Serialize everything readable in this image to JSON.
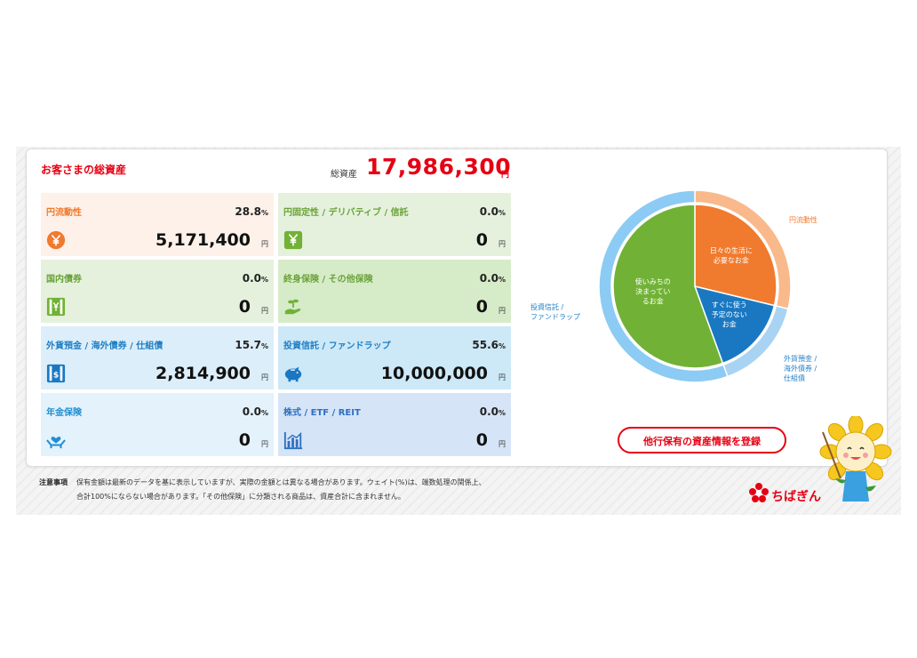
{
  "summary": {
    "title": "お客さまの総資産",
    "total_label": "総資産",
    "total_value": "17,986,300",
    "total_unit": "円"
  },
  "tiles": [
    {
      "name": "円流動性",
      "pct": "28.8",
      "pct_unit": "%",
      "value": "5,171,400",
      "unit": "円",
      "icon": "yen-coin-icon"
    },
    {
      "name": "円固定性 / デリバティブ / 信託",
      "pct": "0.0",
      "pct_unit": "%",
      "value": "0",
      "unit": "円",
      "icon": "yen-square-icon"
    },
    {
      "name": "国内債券",
      "pct": "0.0",
      "pct_unit": "%",
      "value": "0",
      "unit": "円",
      "icon": "yen-bond-icon"
    },
    {
      "name": "終身保険 / その他保険",
      "pct": "0.0",
      "pct_unit": "%",
      "value": "0",
      "unit": "円",
      "icon": "hand-plant-icon"
    },
    {
      "name": "外貨預金 / 海外債券 / 仕組債",
      "pct": "15.7",
      "pct_unit": "%",
      "value": "2,814,900",
      "unit": "円",
      "icon": "dollar-bond-icon"
    },
    {
      "name": "投資信託 / ファンドラップ",
      "pct": "55.6",
      "pct_unit": "%",
      "value": "10,000,000",
      "unit": "円",
      "icon": "piggy-bank-icon"
    },
    {
      "name": "年金保険",
      "pct": "0.0",
      "pct_unit": "%",
      "value": "0",
      "unit": "円",
      "icon": "hands-heart-icon"
    },
    {
      "name": "株式 / ETF / REIT",
      "pct": "0.0",
      "pct_unit": "%",
      "value": "0",
      "unit": "円",
      "icon": "bar-chart-icon"
    }
  ],
  "chart_data": {
    "type": "pie",
    "inner": [
      {
        "label": "日々の生活に必要なお金",
        "value": 28.8,
        "color": "#f07a2d"
      },
      {
        "label": "すぐに使う予定のないお金",
        "value": 15.7,
        "color": "#1a78c2"
      },
      {
        "label": "使いみちの決まっているお金",
        "value": 55.6,
        "color": "#71b236"
      }
    ],
    "outer": [
      {
        "label": "円流動性",
        "value": 28.8,
        "color": "#f9b98a"
      },
      {
        "label": "外貨預金 / 海外債券 / 仕組債",
        "value": 15.7,
        "color": "#a9d3f3"
      },
      {
        "label": "投資信託 / ファンドラップ",
        "value": 55.6,
        "color": "#8ccbf3"
      }
    ]
  },
  "pie_labels": {
    "yen_liquid": "円流動性",
    "foreign": [
      "外貨預金 /",
      "海外債券 /",
      "仕組債"
    ],
    "fund": [
      "投資信託 /",
      "ファンドラップ"
    ],
    "inner_daily": [
      "日々の生活に",
      "必要なお金"
    ],
    "inner_reserved": [
      "すぐに使う",
      "予定のない",
      "お金"
    ],
    "inner_fund": [
      "使いみちの",
      "決まってい",
      "るお金"
    ]
  },
  "register_button": "他行保有の資産情報を登録",
  "notes": {
    "head": "注意事項",
    "line1": "保有金額は最新のデータを基に表示していますが、実際の金額とは異なる場合があります。ウェイト(%)は、端数処理の関係上、",
    "line2": "合計100%にならない場合があります。「その他保険」に分類される商品は、資産合計に含まれません。"
  },
  "brand": {
    "name": "ちばぎん",
    "color": "#e60012"
  }
}
